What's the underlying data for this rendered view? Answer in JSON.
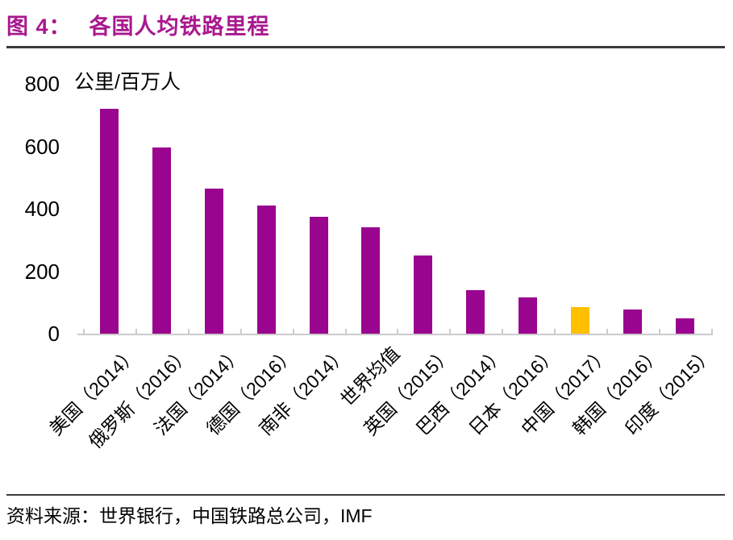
{
  "header": {
    "figure_label": "图 4：",
    "title": "各国人均铁路里程"
  },
  "chart_data": {
    "type": "bar",
    "title": "各国人均铁路里程",
    "unit_label": "公里/百万人",
    "categories": [
      "美国（2014）",
      "俄罗斯（2016）",
      "法国（2014）",
      "德国（2016）",
      "南非（2014）",
      "世界均值",
      "英国（2015）",
      "巴西（2014）",
      "日本（2016）",
      "中国（2017）",
      "韩国（2016）",
      "印度（2015）"
    ],
    "values": [
      720,
      595,
      465,
      410,
      375,
      340,
      250,
      140,
      115,
      85,
      78,
      48
    ],
    "xlabel": "",
    "ylabel": "公里/百万人",
    "ylim": [
      0,
      800
    ],
    "yticks": [
      800,
      600,
      400,
      200,
      0
    ],
    "grid": false,
    "legend": false,
    "bar_color": "#99058F",
    "highlight_index": 9,
    "highlight_color": "#FFC000"
  },
  "footer": {
    "source": "资料来源：世界银行，中国铁路总公司，IMF"
  },
  "colors": {
    "title": "#A8188E",
    "divider": "#3a3a3a",
    "axis": "#cccaca",
    "text": "#000000"
  }
}
